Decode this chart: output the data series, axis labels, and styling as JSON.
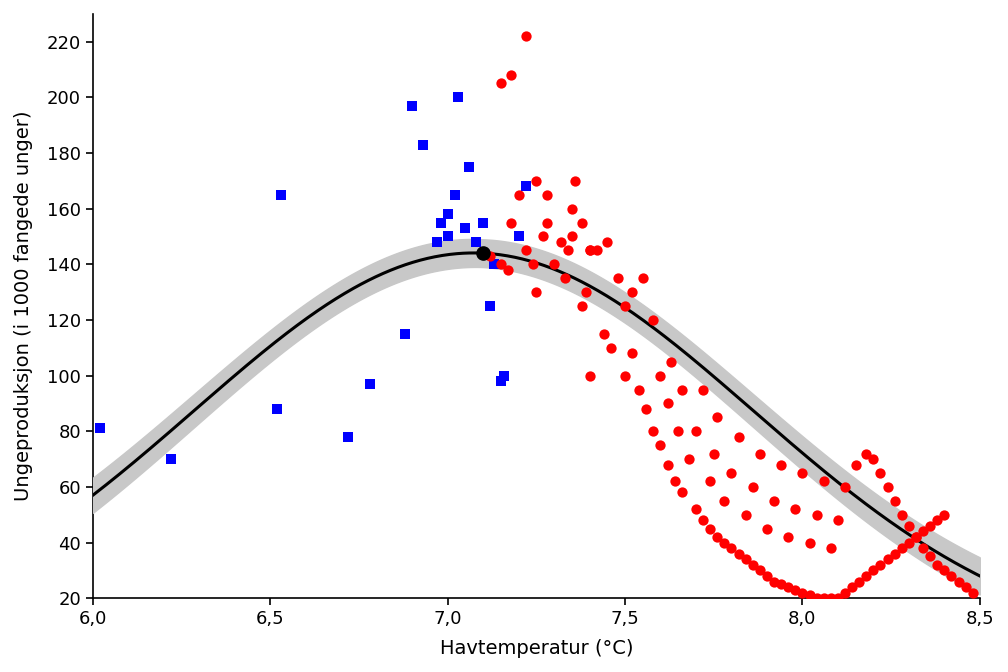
{
  "blue_squares": [
    [
      6.02,
      81
    ],
    [
      6.22,
      70
    ],
    [
      6.52,
      88
    ],
    [
      6.53,
      165
    ],
    [
      6.72,
      78
    ],
    [
      6.78,
      97
    ],
    [
      6.88,
      115
    ],
    [
      6.9,
      197
    ],
    [
      6.93,
      183
    ],
    [
      6.97,
      148
    ],
    [
      6.98,
      155
    ],
    [
      7.0,
      150
    ],
    [
      7.0,
      158
    ],
    [
      7.02,
      165
    ],
    [
      7.03,
      200
    ],
    [
      7.05,
      153
    ],
    [
      7.06,
      175
    ],
    [
      7.08,
      148
    ],
    [
      7.1,
      155
    ],
    [
      7.12,
      125
    ],
    [
      7.13,
      140
    ],
    [
      7.15,
      98
    ],
    [
      7.16,
      100
    ],
    [
      7.2,
      150
    ],
    [
      7.22,
      168
    ]
  ],
  "red_circles": [
    [
      7.12,
      143
    ],
    [
      7.15,
      140
    ],
    [
      7.17,
      138
    ],
    [
      7.18,
      155
    ],
    [
      7.2,
      165
    ],
    [
      7.22,
      145
    ],
    [
      7.24,
      140
    ],
    [
      7.25,
      130
    ],
    [
      7.27,
      150
    ],
    [
      7.28,
      155
    ],
    [
      7.3,
      140
    ],
    [
      7.32,
      148
    ],
    [
      7.33,
      135
    ],
    [
      7.34,
      145
    ],
    [
      7.35,
      160
    ],
    [
      7.36,
      170
    ],
    [
      7.38,
      125
    ],
    [
      7.39,
      130
    ],
    [
      7.4,
      145
    ],
    [
      7.15,
      205
    ],
    [
      7.18,
      208
    ],
    [
      7.22,
      222
    ],
    [
      7.25,
      170
    ],
    [
      7.28,
      165
    ],
    [
      7.35,
      150
    ],
    [
      7.38,
      155
    ],
    [
      7.4,
      145
    ],
    [
      7.42,
      145
    ],
    [
      7.45,
      148
    ],
    [
      7.48,
      135
    ],
    [
      7.5,
      125
    ],
    [
      7.52,
      130
    ],
    [
      7.55,
      135
    ],
    [
      7.58,
      120
    ],
    [
      7.6,
      100
    ],
    [
      7.62,
      90
    ],
    [
      7.63,
      105
    ],
    [
      7.65,
      80
    ],
    [
      7.66,
      95
    ],
    [
      7.68,
      70
    ],
    [
      7.7,
      80
    ],
    [
      7.72,
      95
    ],
    [
      7.74,
      62
    ],
    [
      7.75,
      72
    ],
    [
      7.76,
      85
    ],
    [
      7.78,
      55
    ],
    [
      7.8,
      65
    ],
    [
      7.82,
      78
    ],
    [
      7.84,
      50
    ],
    [
      7.86,
      60
    ],
    [
      7.88,
      72
    ],
    [
      7.9,
      45
    ],
    [
      7.92,
      55
    ],
    [
      7.94,
      68
    ],
    [
      7.96,
      42
    ],
    [
      7.98,
      52
    ],
    [
      8.0,
      65
    ],
    [
      8.02,
      40
    ],
    [
      8.04,
      50
    ],
    [
      8.06,
      62
    ],
    [
      8.08,
      38
    ],
    [
      8.1,
      48
    ],
    [
      8.12,
      60
    ],
    [
      7.4,
      100
    ],
    [
      7.44,
      115
    ],
    [
      7.46,
      110
    ],
    [
      7.5,
      100
    ],
    [
      7.52,
      108
    ],
    [
      7.54,
      95
    ],
    [
      7.56,
      88
    ],
    [
      7.58,
      80
    ],
    [
      7.6,
      75
    ],
    [
      7.62,
      68
    ],
    [
      7.64,
      62
    ],
    [
      7.66,
      58
    ],
    [
      7.7,
      52
    ],
    [
      7.72,
      48
    ],
    [
      7.74,
      45
    ],
    [
      7.76,
      42
    ],
    [
      7.78,
      40
    ],
    [
      7.8,
      38
    ],
    [
      7.82,
      36
    ],
    [
      7.84,
      34
    ],
    [
      7.86,
      32
    ],
    [
      7.88,
      30
    ],
    [
      7.9,
      28
    ],
    [
      7.92,
      26
    ],
    [
      7.94,
      25
    ],
    [
      7.96,
      24
    ],
    [
      7.98,
      23
    ],
    [
      8.0,
      22
    ],
    [
      8.02,
      21
    ],
    [
      8.04,
      20
    ],
    [
      8.06,
      20
    ],
    [
      8.08,
      20
    ],
    [
      8.1,
      20
    ],
    [
      8.12,
      22
    ],
    [
      8.14,
      24
    ],
    [
      8.16,
      26
    ],
    [
      8.18,
      28
    ],
    [
      8.2,
      30
    ],
    [
      8.22,
      32
    ],
    [
      8.24,
      34
    ],
    [
      8.26,
      36
    ],
    [
      8.28,
      38
    ],
    [
      8.3,
      40
    ],
    [
      8.32,
      42
    ],
    [
      8.34,
      44
    ],
    [
      8.36,
      46
    ],
    [
      8.38,
      48
    ],
    [
      8.4,
      50
    ],
    [
      8.15,
      68
    ],
    [
      8.18,
      72
    ],
    [
      8.2,
      70
    ],
    [
      8.22,
      65
    ],
    [
      8.24,
      60
    ],
    [
      8.26,
      55
    ],
    [
      8.28,
      50
    ],
    [
      8.3,
      46
    ],
    [
      8.32,
      42
    ],
    [
      8.34,
      38
    ],
    [
      8.36,
      35
    ],
    [
      8.38,
      32
    ],
    [
      8.4,
      30
    ],
    [
      8.42,
      28
    ],
    [
      8.44,
      26
    ],
    [
      8.46,
      24
    ],
    [
      8.48,
      22
    ]
  ],
  "optimum_x": 7.1,
  "optimum_y": 144,
  "xlim": [
    6.0,
    8.5
  ],
  "ylim": [
    20,
    230
  ],
  "yticks": [
    20,
    40,
    60,
    80,
    100,
    120,
    140,
    160,
    180,
    200,
    220
  ],
  "xticks": [
    6.0,
    6.5,
    7.0,
    7.5,
    8.0,
    8.5
  ],
  "xlabel": "Havtemperatur (°C)",
  "ylabel": "Ungeproduksjon (i 1000 fangede unger)",
  "curve_color": "#000000",
  "ci_color": "#c8c8c8",
  "blue_color": "#0000FF",
  "red_color": "#FF0000",
  "background_color": "#FFFFFF",
  "curve_peak": 144,
  "curve_peak_x": 7.1,
  "curve_b": 0.55,
  "curve_c": -0.72,
  "ci_base": 5,
  "ci_slope": 1.2
}
